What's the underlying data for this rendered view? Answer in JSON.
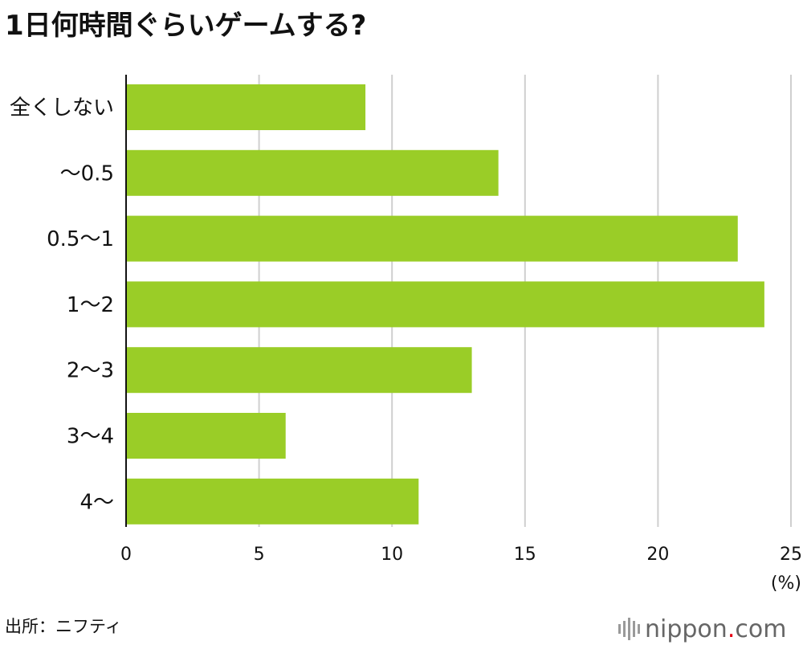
{
  "colors": {
    "bar": "#9acd27",
    "grid": "#cfcfcf",
    "axis": "#111111",
    "logo_dot": "#e60012"
  },
  "chart_data": {
    "type": "bar",
    "orientation": "horizontal",
    "title": "1日何時間ぐらいゲームする?",
    "categories": [
      "全くしない",
      "〜0.5",
      "0.5〜1",
      "1〜2",
      "2〜3",
      "3〜4",
      "4〜"
    ],
    "values": [
      9,
      14,
      23,
      24,
      13,
      6,
      11
    ],
    "xlim": [
      0,
      25
    ],
    "xticks": [
      "0",
      "5",
      "10",
      "15",
      "20",
      "25"
    ],
    "x_unit": "(%)",
    "grid": true
  },
  "source_text": "出所：ニフティ",
  "logo": {
    "name": "nippon",
    "dot": ".",
    "suffix": "com"
  }
}
